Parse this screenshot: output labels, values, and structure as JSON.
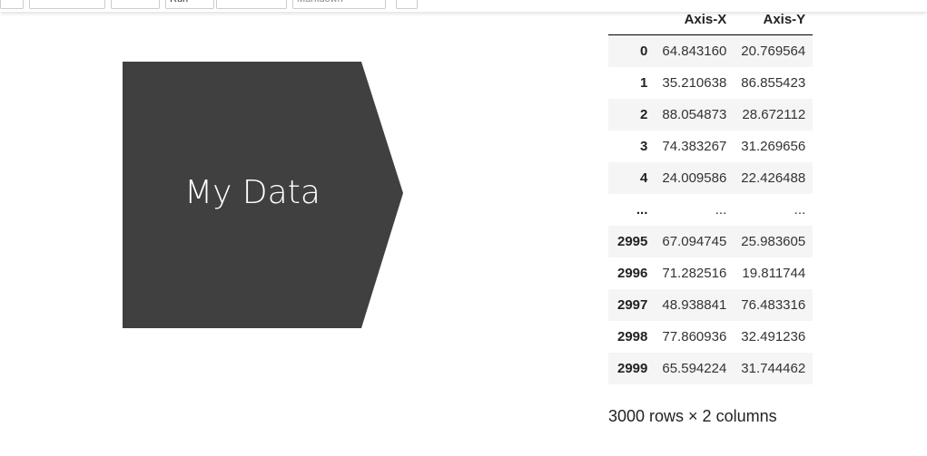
{
  "toolbar": {
    "run": "Run",
    "cell_type": "Markdown"
  },
  "shape": {
    "label": "My Data"
  },
  "table": {
    "columns": [
      "Axis-X",
      "Axis-Y"
    ],
    "rows": [
      [
        "0",
        "64.843160",
        "20.769564"
      ],
      [
        "1",
        "35.210638",
        "86.855423"
      ],
      [
        "2",
        "88.054873",
        "28.672112"
      ],
      [
        "3",
        "74.383267",
        "31.269656"
      ],
      [
        "4",
        "24.009586",
        "22.426488"
      ],
      [
        "...",
        "...",
        "..."
      ],
      [
        "2995",
        "67.094745",
        "25.983605"
      ],
      [
        "2996",
        "71.282516",
        "19.811744"
      ],
      [
        "2997",
        "48.938841",
        "76.483316"
      ],
      [
        "2998",
        "77.860936",
        "32.491236"
      ],
      [
        "2999",
        "65.594224",
        "31.744462"
      ]
    ]
  },
  "footer": "3000 rows × 2 columns"
}
